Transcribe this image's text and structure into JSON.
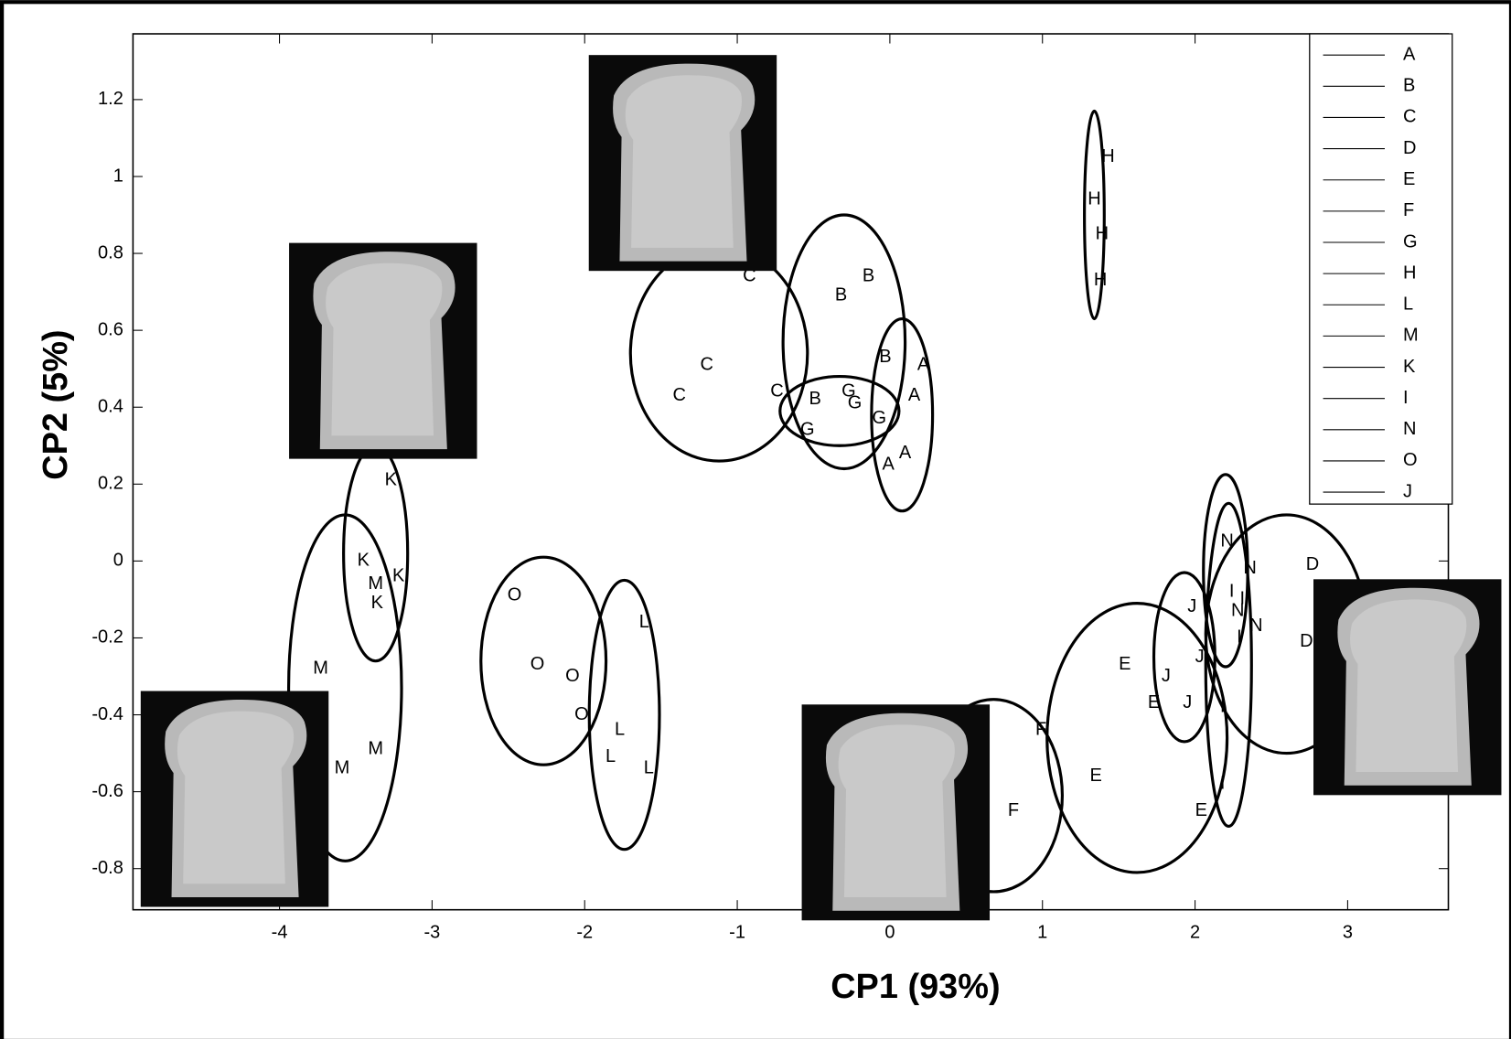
{
  "chart_data": {
    "type": "scatter",
    "xlabel": "CP1 (93%)",
    "ylabel": "CP2 (5%)",
    "xlim": [
      -4.96,
      3.66
    ],
    "ylim": [
      -0.907,
      1.371
    ],
    "xticks": [
      -4,
      -3,
      -2,
      -1,
      0,
      1,
      2,
      3
    ],
    "yticks": [
      -0.8,
      -0.6,
      -0.4,
      -0.2,
      0,
      0.2,
      0.4,
      0.6,
      0.8,
      1,
      1.2
    ],
    "legend": "upper right",
    "series": [
      {
        "name": "A",
        "color": "#000000",
        "x": [
          0.22,
          0.16,
          0.1,
          -0.01
        ],
        "y": [
          0.51,
          0.43,
          0.28,
          0.25
        ],
        "ellipse": {
          "cx": 0.08,
          "cy": 0.38,
          "rx": 0.2,
          "ry": 0.25
        }
      },
      {
        "name": "B",
        "color": "#000000",
        "x": [
          -0.14,
          -0.32,
          -0.03,
          -0.49
        ],
        "y": [
          0.74,
          0.69,
          0.53,
          0.42
        ],
        "ellipse": {
          "cx": -0.3,
          "cy": 0.57,
          "rx": 0.4,
          "ry": 0.33
        }
      },
      {
        "name": "C",
        "color": "#000000",
        "x": [
          -0.92,
          -1.2,
          -1.38,
          -0.74
        ],
        "y": [
          0.74,
          0.51,
          0.43,
          0.44
        ],
        "ellipse": {
          "cx": -1.12,
          "cy": 0.54,
          "rx": 0.58,
          "ry": 0.28
        }
      },
      {
        "name": "D",
        "color": "#000000",
        "x": [
          2.77,
          2.73
        ],
        "y": [
          -0.01,
          -0.21
        ],
        "ellipse": {
          "cx": 2.6,
          "cy": -0.19,
          "rx": 0.53,
          "ry": 0.31
        }
      },
      {
        "name": "E",
        "color": "#000000",
        "x": [
          1.54,
          1.73,
          1.35,
          2.04
        ],
        "y": [
          -0.27,
          -0.37,
          -0.56,
          -0.65
        ],
        "ellipse": {
          "cx": 1.62,
          "cy": -0.46,
          "rx": 0.59,
          "ry": 0.35
        }
      },
      {
        "name": "F",
        "color": "#000000",
        "x": [
          0.99,
          0.81
        ],
        "y": [
          -0.44,
          -0.65
        ],
        "ellipse": {
          "cx": 0.68,
          "cy": -0.61,
          "rx": 0.45,
          "ry": 0.25
        }
      },
      {
        "name": "G",
        "color": "#000000",
        "x": [
          -0.27,
          -0.23,
          -0.07,
          -0.54
        ],
        "y": [
          0.44,
          0.41,
          0.37,
          0.34
        ],
        "ellipse": {
          "cx": -0.33,
          "cy": 0.39,
          "rx": 0.39,
          "ry": 0.09
        }
      },
      {
        "name": "H",
        "color": "#000000",
        "x": [
          1.43,
          1.34,
          1.39,
          1.38
        ],
        "y": [
          1.05,
          0.94,
          0.85,
          0.73
        ],
        "ellipse": {
          "cx": 1.34,
          "cy": 0.9,
          "rx": 0.065,
          "ry": 0.27
        }
      },
      {
        "name": "L",
        "color": "#000000",
        "x": [
          -1.61,
          -1.77,
          -1.83,
          -1.58
        ],
        "y": [
          -0.16,
          -0.44,
          -0.51,
          -0.54
        ],
        "ellipse": {
          "cx": -1.74,
          "cy": -0.4,
          "rx": 0.23,
          "ry": 0.35
        }
      },
      {
        "name": "M",
        "color": "#000000",
        "x": [
          -3.37,
          -3.73,
          -3.37,
          -3.59
        ],
        "y": [
          -0.06,
          -0.28,
          -0.49,
          -0.54
        ],
        "ellipse": {
          "cx": -3.57,
          "cy": -0.33,
          "rx": 0.37,
          "ry": 0.45
        }
      },
      {
        "name": "K",
        "color": "#000000",
        "x": [
          -3.27,
          -3.45,
          -3.22,
          -3.36
        ],
        "y": [
          0.21,
          0.0,
          -0.04,
          -0.11
        ],
        "ellipse": {
          "cx": -3.37,
          "cy": 0.02,
          "rx": 0.21,
          "ry": 0.28
        }
      },
      {
        "name": "I",
        "color": "#000000",
        "x": [
          2.24,
          2.31,
          2.29,
          2.18,
          2.18
        ],
        "y": [
          -0.08,
          -0.1,
          -0.2,
          -0.38,
          -0.58
        ],
        "ellipse": {
          "cx": 2.22,
          "cy": -0.27,
          "rx": 0.15,
          "ry": 0.42
        }
      },
      {
        "name": "N",
        "color": "#000000",
        "x": [
          2.21,
          2.36,
          2.28,
          2.4
        ],
        "y": [
          0.05,
          -0.02,
          -0.13,
          -0.17
        ],
        "ellipse": {
          "cx": 2.2,
          "cy": -0.025,
          "rx": 0.145,
          "ry": 0.25
        }
      },
      {
        "name": "O",
        "color": "#000000",
        "x": [
          -2.46,
          -2.31,
          -2.08,
          -2.02
        ],
        "y": [
          -0.09,
          -0.27,
          -0.3,
          -0.4
        ],
        "ellipse": {
          "cx": -2.27,
          "cy": -0.26,
          "rx": 0.41,
          "ry": 0.27
        }
      },
      {
        "name": "J",
        "color": "#000000",
        "x": [
          1.98,
          2.03,
          1.81,
          1.95
        ],
        "y": [
          -0.12,
          -0.25,
          -0.3,
          -0.37
        ],
        "ellipse": {
          "cx": 1.93,
          "cy": -0.25,
          "rx": 0.2,
          "ry": 0.22
        }
      }
    ]
  }
}
